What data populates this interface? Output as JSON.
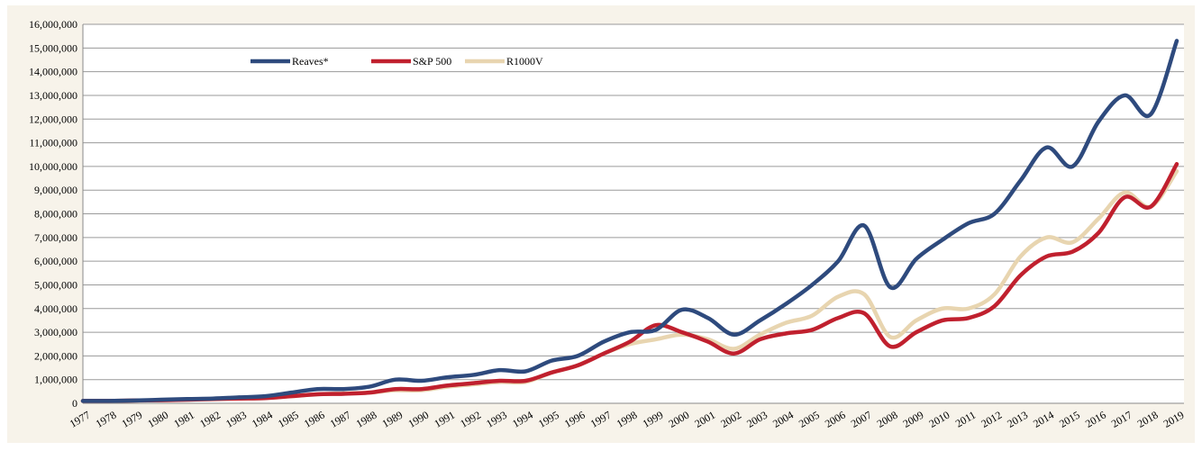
{
  "chart_data": {
    "type": "line",
    "categories": [
      "1977",
      "1978",
      "1979",
      "1980",
      "1981",
      "1982",
      "1983",
      "1984",
      "1985",
      "1986",
      "1987",
      "1988",
      "1989",
      "1990",
      "1991",
      "1992",
      "1993",
      "1994",
      "1995",
      "1996",
      "1997",
      "1998",
      "1999",
      "2000",
      "2001",
      "2002",
      "2003",
      "2004",
      "2005",
      "2006",
      "2007",
      "2008",
      "2009",
      "2010",
      "2011",
      "2012",
      "2013",
      "2014",
      "2015",
      "2016",
      "2017",
      "2018",
      "2019"
    ],
    "series": [
      {
        "name": "Reaves*",
        "color": "#2e4a7d",
        "values": [
          100000,
          100000,
          120000,
          150000,
          180000,
          200000,
          250000,
          300000,
          450000,
          600000,
          600000,
          700000,
          1000000,
          950000,
          1100000,
          1200000,
          1400000,
          1350000,
          1800000,
          2000000,
          2600000,
          3000000,
          3100000,
          3950000,
          3600000,
          2900000,
          3500000,
          4200000,
          5000000,
          6000000,
          7500000,
          4900000,
          6100000,
          6900000,
          7600000,
          8000000,
          9400000,
          10800000,
          10000000,
          11900000,
          13000000,
          12200000,
          15300000
        ]
      },
      {
        "name": "S&P 500",
        "color": "#c0202e",
        "values": [
          100000,
          100000,
          120000,
          130000,
          150000,
          180000,
          200000,
          220000,
          300000,
          380000,
          400000,
          450000,
          600000,
          600000,
          750000,
          850000,
          950000,
          950000,
          1300000,
          1600000,
          2100000,
          2600000,
          3300000,
          3000000,
          2600000,
          2100000,
          2700000,
          2950000,
          3100000,
          3600000,
          3800000,
          2400000,
          3000000,
          3500000,
          3600000,
          4100000,
          5400000,
          6200000,
          6400000,
          7200000,
          8700000,
          8300000,
          10100000
        ]
      },
      {
        "name": "R1000V",
        "color": "#e8d5b0",
        "values": [
          100000,
          100000,
          120000,
          130000,
          150000,
          170000,
          200000,
          220000,
          300000,
          380000,
          420000,
          450000,
          550000,
          550000,
          700000,
          800000,
          900000,
          900000,
          1300000,
          1600000,
          2100000,
          2500000,
          2700000,
          2900000,
          2700000,
          2300000,
          2900000,
          3400000,
          3700000,
          4500000,
          4600000,
          2800000,
          3500000,
          4000000,
          4000000,
          4600000,
          6200000,
          7000000,
          6800000,
          7800000,
          8900000,
          8300000,
          9800000
        ]
      }
    ],
    "ylim": [
      0,
      16000000
    ],
    "yticks": [
      0,
      {
        "value": 1000000,
        "label": "1,000,000"
      },
      {
        "value": 2000000,
        "label": "2,000,000"
      },
      {
        "value": 3000000,
        "label": "3,000,000"
      },
      {
        "value": 4000000,
        "label": "4,000,000"
      },
      {
        "value": 5000000,
        "label": "5,000,000"
      },
      {
        "value": 6000000,
        "label": "6,000,000"
      },
      {
        "value": 7000000,
        "label": "7,000,000"
      },
      {
        "value": 8000000,
        "label": "8,000,000"
      },
      {
        "value": 9000000,
        "label": "9,000,000"
      },
      {
        "value": 10000000,
        "label": "10,000,000"
      },
      {
        "value": 11000000,
        "label": "11,000,000"
      },
      {
        "value": 12000000,
        "label": "12,000,000"
      },
      {
        "value": 13000000,
        "label": "13,000,000"
      },
      {
        "value": 14000000,
        "label": "14,000,000"
      },
      {
        "value": 15000000,
        "label": "15,000,000"
      },
      {
        "value": 16000000,
        "label": "16,000,000"
      }
    ],
    "grid": true,
    "legend": "top-left"
  }
}
